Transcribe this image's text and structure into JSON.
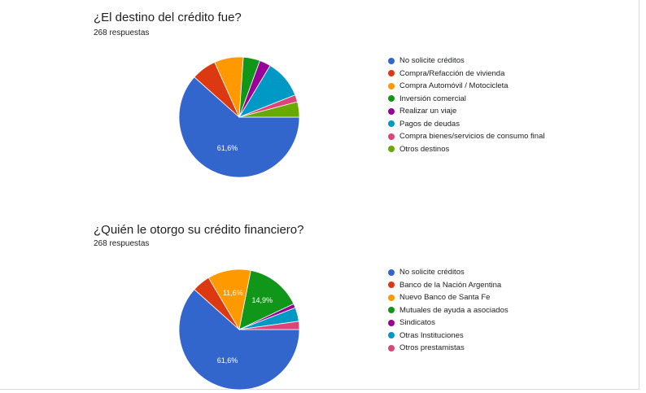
{
  "chart_data": [
    {
      "type": "pie",
      "title": "¿El destino del crédito fue?",
      "subtitle": "268 respuestas",
      "slices": [
        {
          "label": "No solicite créditos",
          "value": 61.6,
          "value_label": "61,6%",
          "color": "#3366cc"
        },
        {
          "label": "Compra/Refacción de vivienda",
          "value": 6.7,
          "value_label": "",
          "color": "#dc3912"
        },
        {
          "label": "Compra Automóvil / Motocicleta",
          "value": 7.8,
          "value_label": "",
          "color": "#ff9900"
        },
        {
          "label": "Inversión comercial",
          "value": 4.5,
          "value_label": "",
          "color": "#109618"
        },
        {
          "label": "Realizar un viaje",
          "value": 3.0,
          "value_label": "",
          "color": "#990099"
        },
        {
          "label": "Pagos de deudas",
          "value": 10.4,
          "value_label": "",
          "color": "#0099c6"
        },
        {
          "label": "Compra bienes/servicios de consumo final",
          "value": 1.9,
          "value_label": "",
          "color": "#dd4477"
        },
        {
          "label": "Otros destinos",
          "value": 4.1,
          "value_label": "",
          "color": "#66aa00"
        }
      ]
    },
    {
      "type": "pie",
      "title": "¿Quién le otorgo su crédito financiero?",
      "subtitle": "268 respuestas",
      "slices": [
        {
          "label": "No solicite créditos",
          "value": 61.6,
          "value_label": "61,6%",
          "color": "#3366cc"
        },
        {
          "label": "Banco de la Nación Argentina",
          "value": 4.9,
          "value_label": "",
          "color": "#dc3912"
        },
        {
          "label": "Nuevo Banco de Santa Fe",
          "value": 11.6,
          "value_label": "11,6%",
          "color": "#ff9900"
        },
        {
          "label": "Mutuales de ayuda a asociados",
          "value": 14.9,
          "value_label": "14,9%",
          "color": "#109618"
        },
        {
          "label": "Sindicatos",
          "value": 1.1,
          "value_label": "",
          "color": "#990099"
        },
        {
          "label": "Otras Instituciones",
          "value": 3.7,
          "value_label": "",
          "color": "#0099c6"
        },
        {
          "label": "Otros prestamistas",
          "value": 2.2,
          "value_label": "",
          "color": "#dd4477"
        }
      ]
    }
  ]
}
